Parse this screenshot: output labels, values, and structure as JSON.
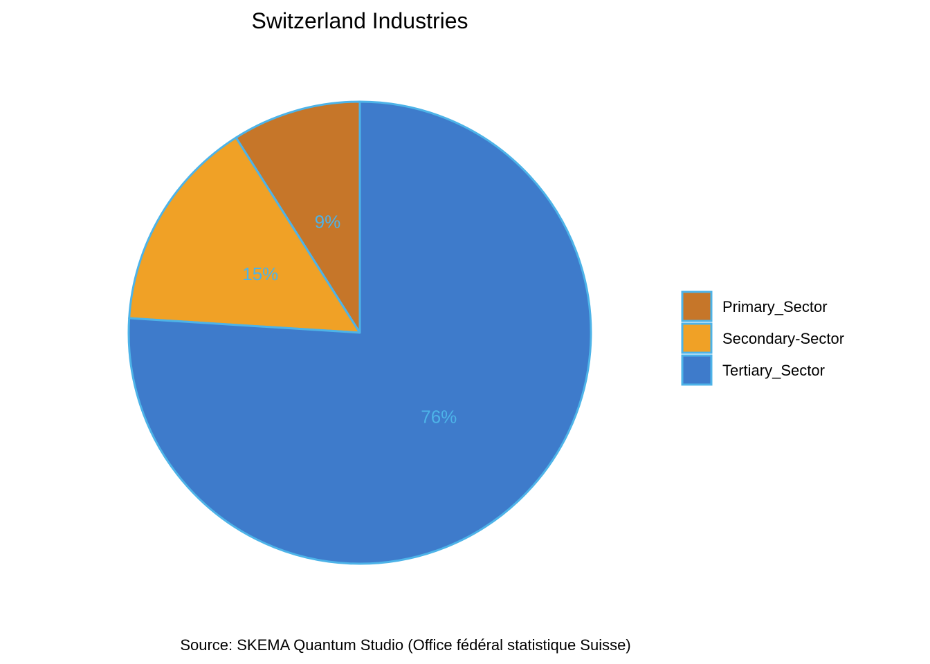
{
  "chart_data": {
    "type": "pie",
    "title": "Switzerland Industries",
    "caption": "Source: SKEMA Quantum Studio (Office fédéral statistique Suisse)",
    "categories": [
      "Primary_Sector",
      "Secondary-Sector",
      "Tertiary_Sector"
    ],
    "values": [
      9,
      15,
      76
    ],
    "labels": [
      "9%",
      "15%",
      "76%"
    ],
    "colors": [
      "#c67629",
      "#f0a126",
      "#3e7bcb"
    ],
    "border_color": "#4db3e8",
    "label_color": "#4db3e8",
    "start_angle": "12 o'clock",
    "direction": "counterclockwise",
    "legend_position": "right"
  }
}
